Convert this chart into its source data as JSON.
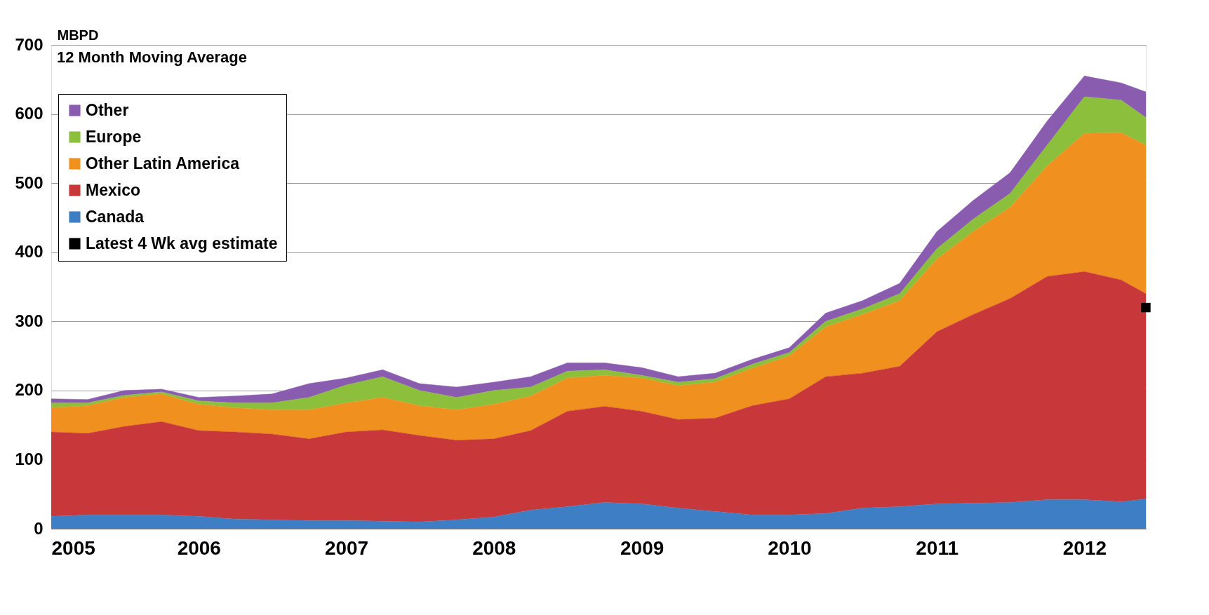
{
  "chart_data": {
    "type": "area",
    "stacked": true,
    "ylabel": "MBPD",
    "annotations": [
      "12 Month Moving Average"
    ],
    "x": [
      "2005-01",
      "2005-04",
      "2005-07",
      "2005-10",
      "2006-01",
      "2006-04",
      "2006-07",
      "2006-10",
      "2007-01",
      "2007-04",
      "2007-07",
      "2007-10",
      "2008-01",
      "2008-04",
      "2008-07",
      "2008-10",
      "2009-01",
      "2009-04",
      "2009-07",
      "2009-10",
      "2010-01",
      "2010-04",
      "2010-07",
      "2010-10",
      "2011-01",
      "2011-04",
      "2011-07",
      "2011-10",
      "2012-01",
      "2012-04",
      "2012-06"
    ],
    "series": [
      {
        "name": "Canada",
        "color": "#3d7ec4",
        "values": [
          18,
          20,
          20,
          20,
          18,
          14,
          13,
          12,
          12,
          11,
          10,
          13,
          17,
          27,
          32,
          38,
          36,
          30,
          25,
          20,
          20,
          22,
          30,
          32,
          36,
          37,
          38,
          42,
          42,
          39,
          43
        ]
      },
      {
        "name": "Mexico",
        "color": "#c8383a",
        "values": [
          122,
          118,
          128,
          135,
          124,
          126,
          124,
          118,
          128,
          132,
          125,
          115,
          113,
          115,
          138,
          139,
          134,
          128,
          135,
          158,
          168,
          198,
          195,
          203,
          249,
          273,
          295,
          323,
          330,
          321,
          297
        ]
      },
      {
        "name": "Other Latin America",
        "color": "#f0901e",
        "values": [
          35,
          40,
          42,
          40,
          38,
          35,
          35,
          42,
          42,
          47,
          43,
          44,
          50,
          50,
          48,
          45,
          48,
          49,
          52,
          54,
          62,
          72,
          85,
          95,
          105,
          120,
          132,
          160,
          200,
          213,
          215
        ]
      },
      {
        "name": "Europe",
        "color": "#8cc03c",
        "values": [
          7,
          4,
          3,
          3,
          5,
          7,
          10,
          18,
          26,
          30,
          22,
          18,
          20,
          13,
          10,
          8,
          4,
          5,
          5,
          6,
          5,
          8,
          8,
          10,
          15,
          18,
          20,
          30,
          53,
          47,
          40
        ]
      },
      {
        "name": "Other",
        "color": "#8a5cb0",
        "values": [
          6,
          5,
          7,
          4,
          5,
          10,
          13,
          20,
          10,
          10,
          10,
          15,
          12,
          15,
          12,
          10,
          11,
          8,
          8,
          7,
          7,
          12,
          12,
          15,
          25,
          27,
          30,
          35,
          30,
          25,
          37
        ]
      },
      {
        "name": "Latest 4 Wk avg estimate",
        "type": "scatter",
        "marker": "square",
        "color": "#000000",
        "x": [
          "2012-06"
        ],
        "values": [
          320
        ]
      }
    ],
    "xlim": [
      "2005-01",
      "2012-06"
    ],
    "xticks": [
      "2005",
      "2006",
      "2007",
      "2008",
      "2009",
      "2010",
      "2011",
      "2012"
    ],
    "ylim": [
      0,
      700
    ],
    "yticks": [
      0,
      100,
      200,
      300,
      400,
      500,
      600,
      700
    ],
    "grid": "y",
    "legend": "top left"
  }
}
